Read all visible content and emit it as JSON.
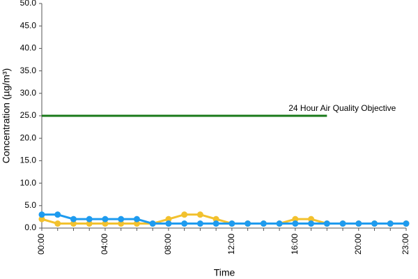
{
  "chart_data": {
    "type": "line",
    "x_label": "Time",
    "y_label": "Concentration (µg/m³)",
    "categories": [
      "00:00",
      null,
      null,
      null,
      "04:00",
      null,
      null,
      null,
      "08:00",
      null,
      null,
      null,
      "12:00",
      null,
      null,
      null,
      "16:00",
      null,
      null,
      null,
      "20:00",
      null,
      null,
      "23:00"
    ],
    "series": [
      {
        "name": "24 Hour Air Quality Objective",
        "color": "#1a7a1a",
        "markers": false,
        "values": [
          25,
          25,
          25,
          25,
          25,
          25,
          25,
          25,
          25,
          25,
          25,
          25,
          25,
          25,
          25,
          25,
          25,
          25,
          25,
          null,
          null,
          null,
          null,
          null
        ]
      },
      {
        "color": "#f2c12e",
        "markers": true,
        "values": [
          2,
          1,
          1,
          1,
          1,
          1,
          1,
          1,
          2,
          3,
          3,
          2,
          1,
          1,
          1,
          1,
          2,
          2,
          1,
          1,
          1,
          1,
          1,
          1
        ]
      },
      {
        "color": "#1e9bef",
        "markers": true,
        "values": [
          3,
          3,
          2,
          2,
          2,
          2,
          2,
          1,
          1,
          1,
          1,
          1,
          1,
          1,
          1,
          1,
          1,
          1,
          1,
          1,
          1,
          1,
          1,
          1
        ]
      }
    ],
    "ylim": [
      0,
      50
    ],
    "yticks": [
      {
        "value": 0,
        "label": "0.0"
      },
      {
        "value": 5,
        "label": "5.0"
      },
      {
        "value": 10,
        "label": "10.0"
      },
      {
        "value": 15,
        "label": "15.0"
      },
      {
        "value": 20,
        "label": "20.0"
      },
      {
        "value": 25,
        "label": "25.0"
      },
      {
        "value": 30,
        "label": "30.0"
      },
      {
        "value": 35,
        "label": "35.0"
      },
      {
        "value": 40,
        "label": "40.0"
      },
      {
        "value": 45,
        "label": "45.0"
      },
      {
        "value": 50,
        "label": "50.0"
      }
    ],
    "grid": false
  }
}
